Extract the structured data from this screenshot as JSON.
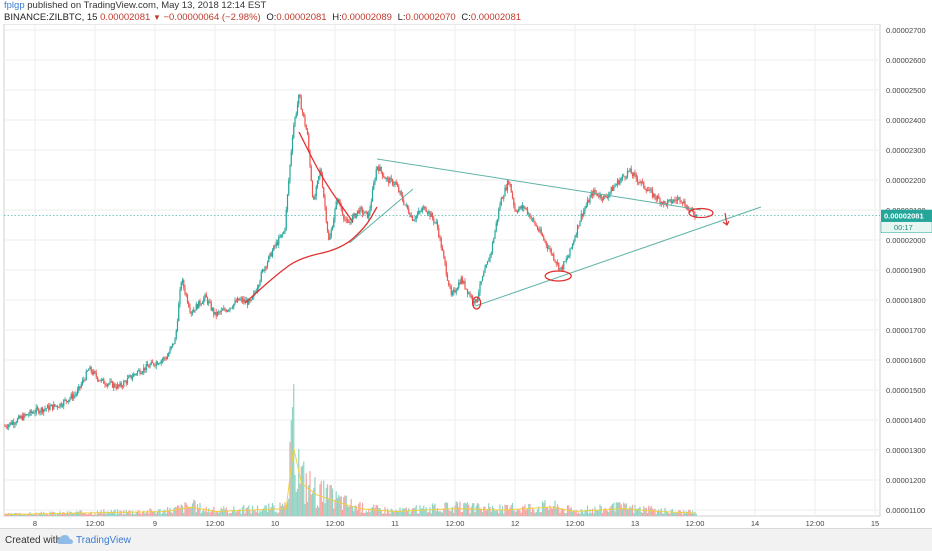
{
  "header": {
    "author": "fplgp",
    "published_text": "published on TradingView.com, May 13, 2018 12:14 EST",
    "symbol": "BINANCE:ZILBTC, 15",
    "last": "0.00002081",
    "change_arrow": "▼",
    "change": "−0.00000064 (−2.98%)",
    "open_label": "O:",
    "open": "0.00002081",
    "high_label": "H:",
    "high": "0.00002089",
    "low_label": "L:",
    "low": "0.00002070",
    "close_label": "C:",
    "close": "0.00002081"
  },
  "footer": {
    "created_with": "Created with",
    "brand": "TradingView"
  },
  "colors": {
    "up": "#26a69a",
    "down": "#ef5350",
    "trend": "#5fb3a8",
    "drawing": "#e03030",
    "price_tag": "#26a69a",
    "vol_ma": "#f0d040"
  },
  "chart_data": {
    "type": "candlestick",
    "ylim": [
      1.08e-05,
      2.72e-05
    ],
    "yticks": [
      "0.00002700",
      "0.00002600",
      "0.00002500",
      "0.00002400",
      "0.00002300",
      "0.00002200",
      "0.00002100",
      "0.00002000",
      "0.00001900",
      "0.00001800",
      "0.00001700",
      "0.00001600",
      "0.00001500",
      "0.00001400",
      "0.00001300",
      "0.00001200",
      "0.00001100"
    ],
    "xticks": [
      "8",
      "12:00",
      "9",
      "12:00",
      "10",
      "12:00",
      "11",
      "12:00",
      "12",
      "12:00",
      "13",
      "12:00",
      "14",
      "12:00",
      "15"
    ],
    "price_tag": "0.00002081",
    "countdown": "00:17",
    "price_path": [
      [
        7.75,
        1.38e-05
      ],
      [
        7.9,
        1.41e-05
      ],
      [
        8.0,
        1.43e-05
      ],
      [
        8.2,
        1.45e-05
      ],
      [
        8.35,
        1.49e-05
      ],
      [
        8.45,
        1.57e-05
      ],
      [
        8.55,
        1.53e-05
      ],
      [
        8.7,
        1.51e-05
      ],
      [
        8.85,
        1.56e-05
      ],
      [
        9.0,
        1.59e-05
      ],
      [
        9.1,
        1.61e-05
      ],
      [
        9.17,
        1.67e-05
      ],
      [
        9.22,
        1.87e-05
      ],
      [
        9.3,
        1.76e-05
      ],
      [
        9.42,
        1.81e-05
      ],
      [
        9.5,
        1.75e-05
      ],
      [
        9.6,
        1.77e-05
      ],
      [
        9.7,
        1.8e-05
      ],
      [
        9.8,
        1.79e-05
      ],
      [
        9.9,
        1.9e-05
      ],
      [
        10.0,
        1.98e-05
      ],
      [
        10.08,
        2.03e-05
      ],
      [
        10.15,
        2.37e-05
      ],
      [
        10.2,
        2.48e-05
      ],
      [
        10.27,
        2.35e-05
      ],
      [
        10.32,
        2.12e-05
      ],
      [
        10.38,
        2.24e-05
      ],
      [
        10.45,
        1.99e-05
      ],
      [
        10.52,
        2.14e-05
      ],
      [
        10.6,
        2.05e-05
      ],
      [
        10.7,
        2.1e-05
      ],
      [
        10.78,
        2.08e-05
      ],
      [
        10.85,
        2.25e-05
      ],
      [
        10.93,
        2.2e-05
      ],
      [
        11.0,
        2.19e-05
      ],
      [
        11.08,
        2.12e-05
      ],
      [
        11.15,
        2.07e-05
      ],
      [
        11.25,
        2.11e-05
      ],
      [
        11.35,
        2.05e-05
      ],
      [
        11.42,
        1.91e-05
      ],
      [
        11.47,
        1.81e-05
      ],
      [
        11.55,
        1.87e-05
      ],
      [
        11.62,
        1.82e-05
      ],
      [
        11.67,
        1.79e-05
      ],
      [
        11.72,
        1.86e-05
      ],
      [
        11.8,
        1.96e-05
      ],
      [
        11.88,
        2.13e-05
      ],
      [
        11.95,
        2.2e-05
      ],
      [
        12.0,
        2.1e-05
      ],
      [
        12.08,
        2.11e-05
      ],
      [
        12.2,
        2.03e-05
      ],
      [
        12.3,
        1.96e-05
      ],
      [
        12.38,
        1.9e-05
      ],
      [
        12.45,
        1.95e-05
      ],
      [
        12.55,
        2.08e-05
      ],
      [
        12.65,
        2.16e-05
      ],
      [
        12.75,
        2.14e-05
      ],
      [
        12.85,
        2.19e-05
      ],
      [
        12.95,
        2.23e-05
      ],
      [
        13.05,
        2.19e-05
      ],
      [
        13.15,
        2.15e-05
      ],
      [
        13.25,
        2.12e-05
      ],
      [
        13.38,
        2.14e-05
      ],
      [
        13.45,
        2.1e-05
      ],
      [
        13.52,
        2.08e-05
      ]
    ],
    "volume_peaks": [
      [
        7.75,
        1
      ],
      [
        8.4,
        2
      ],
      [
        9.1,
        3
      ],
      [
        9.3,
        6
      ],
      [
        9.5,
        3
      ],
      [
        10.1,
        5
      ],
      [
        10.15,
        48
      ],
      [
        10.22,
        22
      ],
      [
        10.35,
        14
      ],
      [
        10.5,
        10
      ],
      [
        10.7,
        5
      ],
      [
        11.0,
        3
      ],
      [
        11.5,
        5
      ],
      [
        11.9,
        4
      ],
      [
        12.3,
        6
      ],
      [
        12.5,
        3
      ],
      [
        12.9,
        5
      ],
      [
        13.2,
        3
      ],
      [
        13.5,
        2
      ]
    ],
    "annotations": {
      "triangle_upper": [
        [
          10.85,
          2.27e-05
        ],
        [
          13.55,
          2.1e-05
        ]
      ],
      "triangle_lower": [
        [
          11.67,
          1.78e-05
        ],
        [
          14.05,
          2.11e-05
        ]
      ],
      "red_curve": [
        [
          9.75,
          1.79e-05
        ],
        [
          10.0,
          1.88e-05
        ],
        [
          10.2,
          1.94e-05
        ],
        [
          10.55,
          1.97e-05
        ],
        [
          10.75,
          2.04e-05
        ],
        [
          10.85,
          2.11e-05
        ]
      ],
      "red_curve_top": [
        [
          10.2,
          2.36e-05
        ],
        [
          10.4,
          2.2e-05
        ],
        [
          10.65,
          2.06e-05
        ]
      ]
    }
  }
}
